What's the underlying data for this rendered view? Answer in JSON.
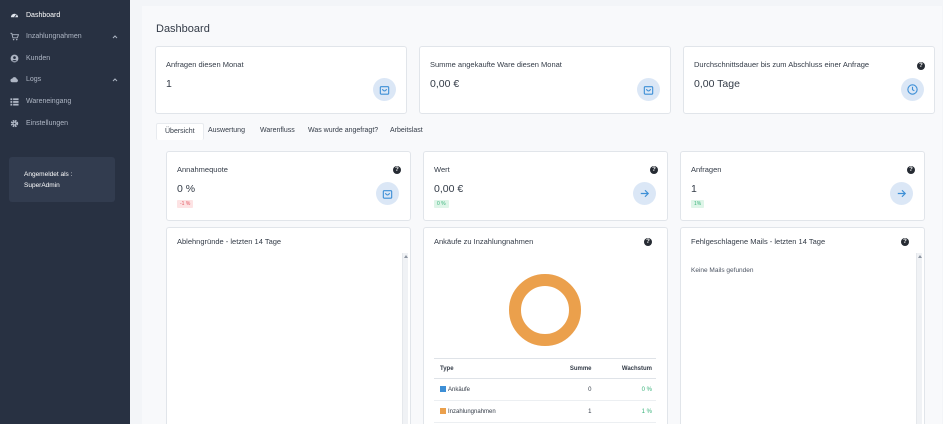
{
  "sidebar": {
    "items": [
      {
        "label": "Dashboard",
        "icon": "dashboard-icon",
        "active": true
      },
      {
        "label": "Inzahlungnahmen",
        "icon": "cart-icon",
        "expandable": true
      },
      {
        "label": "Kunden",
        "icon": "user-icon"
      },
      {
        "label": "Logs",
        "icon": "cloud-icon",
        "expandable": true
      },
      {
        "label": "Wareneingang",
        "icon": "list-icon"
      },
      {
        "label": "Einstellungen",
        "icon": "gear-icon"
      }
    ],
    "login": {
      "line1": "Angemeldet als :",
      "line2": "SuperAdmin"
    }
  },
  "header": {
    "title": "Dashboard"
  },
  "summary_cards": [
    {
      "title": "Anfragen diesen Monat",
      "value": "1",
      "icon": "shopping-bag-icon"
    },
    {
      "title": "Summe angekaufte Ware diesen Monat",
      "value": "0,00 €",
      "icon": "shopping-bag-icon"
    },
    {
      "title": "Durchschnittsdauer bis zum Abschluss einer Anfrage",
      "value": "0,00 Tage",
      "icon": "clock-icon",
      "help": "?"
    }
  ],
  "tabs": [
    "Übersicht",
    "Auswertung",
    "Warenfluss",
    "Was wurde angefragt?",
    "Arbeitslast"
  ],
  "active_tab": "Übersicht",
  "stat_cards": [
    {
      "title": "Annahmequote",
      "value": "0 %",
      "badge": "-1 %",
      "badge_color": "#e2555f",
      "icon": "shopping-bag-icon",
      "help": "?"
    },
    {
      "title": "Wert",
      "value": "0,00 €",
      "badge": "0 %",
      "badge_color": "#38b27a",
      "icon": "arrow-right-icon",
      "help": "?"
    },
    {
      "title": "Anfragen",
      "value": "1",
      "badge": "1%",
      "badge_color": "#38b27a",
      "icon": "arrow-right-icon",
      "help": "?"
    }
  ],
  "panels": {
    "rejection": {
      "title": "Ablehngründe - letzten 14 Tage"
    },
    "purchases": {
      "title": "Ankäufe zu Inzahlungnahmen",
      "help": "?",
      "table": {
        "headers": [
          "Type",
          "Summe",
          "Wachstum"
        ],
        "rows": [
          {
            "type": "Ankäufe",
            "color": "#3d8fd6",
            "sum": "0",
            "growth": "0 %"
          },
          {
            "type": "Inzahlungnahmen",
            "color": "#eba04c",
            "sum": "1",
            "growth": "1 %"
          }
        ]
      }
    },
    "failed_mails": {
      "title": "Fehlgeschlagene Mails - letzten 14 Tage",
      "help": "?",
      "empty_text": "Keine Mails gefunden"
    }
  },
  "chart_data": {
    "type": "pie",
    "categories": [
      "Ankäufe",
      "Inzahlungnahmen"
    ],
    "values": [
      0,
      1
    ],
    "colors": [
      "#3d8fd6",
      "#eba04c"
    ]
  }
}
